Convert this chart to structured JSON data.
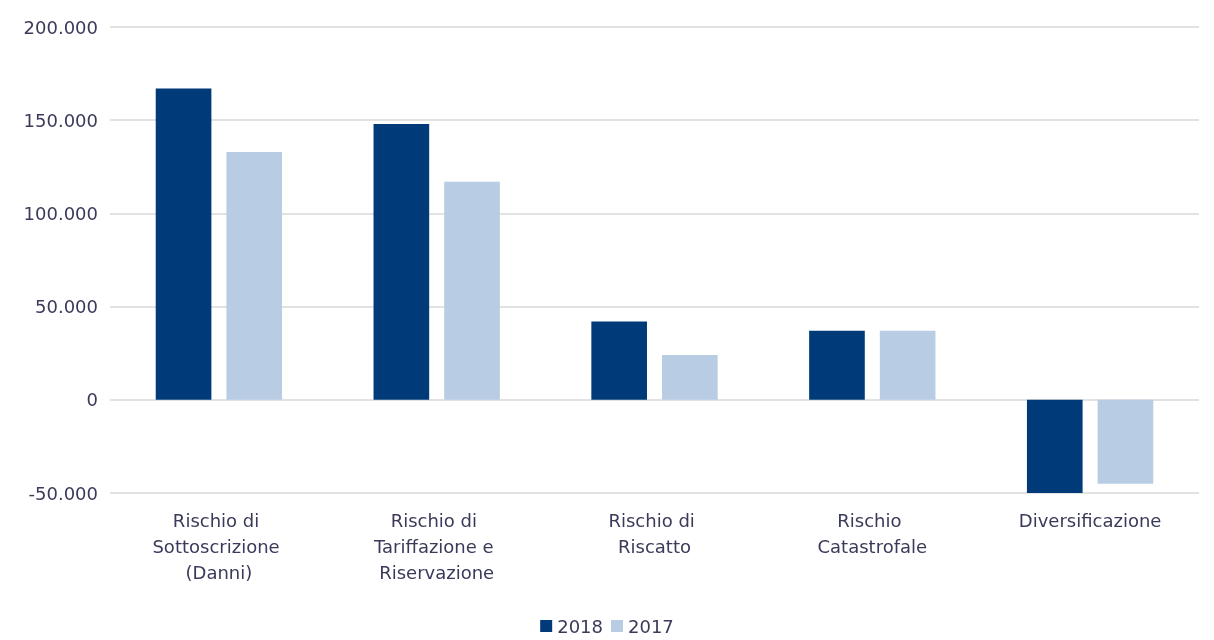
{
  "chart_data": {
    "type": "bar",
    "categories": [
      "Rischio di Sottoscrizione (Danni)",
      "Rischio di Tariffazione e Riservazione",
      "Rischio di Riscatto",
      "Rischio Catastrofale",
      "Diversificazione"
    ],
    "series": [
      {
        "name": "2018",
        "color": "#003a78",
        "values": [
          167000,
          148000,
          42000,
          37000,
          -50000
        ]
      },
      {
        "name": "2017",
        "color": "#b8cce4",
        "values": [
          133000,
          117000,
          24000,
          37000,
          -45000
        ]
      }
    ],
    "ylim": [
      -50000,
      200000
    ],
    "yticks": [
      {
        "value": -50000,
        "label": "-50.000"
      },
      {
        "value": 0,
        "label": "0"
      },
      {
        "value": 50000,
        "label": "50.000"
      },
      {
        "value": 100000,
        "label": "100.000"
      },
      {
        "value": 150000,
        "label": "150.000"
      },
      {
        "value": 200000,
        "label": "200.000"
      }
    ],
    "grid": true,
    "legend": "bottom"
  }
}
